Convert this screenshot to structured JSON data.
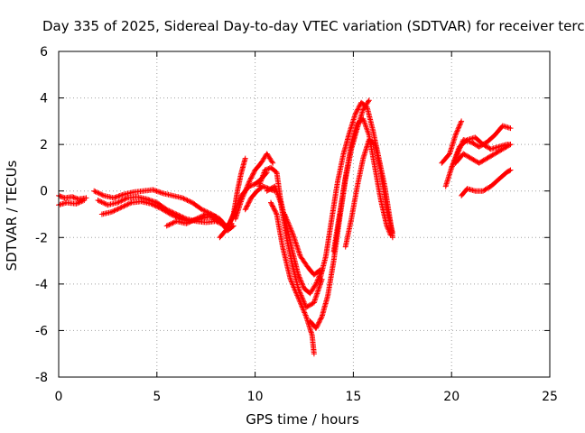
{
  "chart_data": {
    "type": "scatter",
    "title": "Day 335 of 2025, Sidereal Day-to-day VTEC variation (SDTVAR) for receiver terc",
    "xlabel": "GPS time / hours",
    "ylabel": "SDTVAR / TECUs",
    "xlim": [
      0,
      25
    ],
    "ylim": [
      -8,
      6
    ],
    "xticks": [
      0,
      5,
      10,
      15,
      20,
      25
    ],
    "yticks": [
      -8,
      -6,
      -4,
      -2,
      0,
      2,
      4,
      6
    ],
    "grid": true,
    "marker": "+",
    "series": [
      {
        "color": "#ff0000",
        "tracks": [
          [
            [
              0.0,
              -0.2
            ],
            [
              0.3,
              -0.3
            ],
            [
              0.7,
              -0.25
            ],
            [
              1.0,
              -0.35
            ],
            [
              1.4,
              -0.3
            ]
          ],
          [
            [
              0.0,
              -0.6
            ],
            [
              0.4,
              -0.5
            ],
            [
              0.9,
              -0.55
            ],
            [
              1.3,
              -0.4
            ]
          ],
          [
            [
              1.8,
              0.0
            ],
            [
              2.3,
              -0.2
            ],
            [
              2.8,
              -0.3
            ],
            [
              3.3,
              -0.15
            ],
            [
              3.8,
              -0.05
            ],
            [
              4.3,
              0.0
            ],
            [
              4.8,
              0.05
            ],
            [
              5.3,
              -0.1
            ],
            [
              5.8,
              -0.2
            ],
            [
              6.3,
              -0.3
            ],
            [
              6.8,
              -0.5
            ],
            [
              7.3,
              -0.8
            ],
            [
              7.8,
              -1.0
            ],
            [
              8.2,
              -1.2
            ],
            [
              8.5,
              -1.5
            ],
            [
              8.8,
              -1.4
            ]
          ],
          [
            [
              2.0,
              -0.4
            ],
            [
              2.5,
              -0.6
            ],
            [
              3.0,
              -0.5
            ],
            [
              3.5,
              -0.3
            ],
            [
              4.0,
              -0.25
            ],
            [
              4.5,
              -0.35
            ],
            [
              5.0,
              -0.5
            ],
            [
              5.5,
              -0.8
            ],
            [
              6.0,
              -1.0
            ],
            [
              6.5,
              -1.2
            ],
            [
              7.0,
              -1.3
            ],
            [
              7.5,
              -1.35
            ],
            [
              8.0,
              -1.3
            ],
            [
              8.5,
              -1.5
            ]
          ],
          [
            [
              2.2,
              -1.0
            ],
            [
              2.7,
              -0.9
            ],
            [
              3.2,
              -0.7
            ],
            [
              3.7,
              -0.5
            ],
            [
              4.2,
              -0.45
            ],
            [
              4.7,
              -0.55
            ],
            [
              5.2,
              -0.75
            ],
            [
              5.7,
              -1.0
            ],
            [
              6.2,
              -1.2
            ],
            [
              6.7,
              -1.3
            ],
            [
              7.2,
              -1.2
            ],
            [
              7.7,
              -1.1
            ],
            [
              8.2,
              -1.3
            ],
            [
              8.6,
              -1.7
            ],
            [
              8.9,
              -1.5
            ]
          ],
          [
            [
              5.5,
              -1.5
            ],
            [
              6.0,
              -1.3
            ],
            [
              6.5,
              -1.4
            ],
            [
              7.0,
              -1.2
            ],
            [
              7.5,
              -1.0
            ],
            [
              8.0,
              -1.1
            ]
          ],
          [
            [
              8.2,
              -2.0
            ],
            [
              8.6,
              -1.6
            ],
            [
              8.9,
              -1.0
            ],
            [
              9.1,
              0.0
            ],
            [
              9.3,
              0.8
            ],
            [
              9.5,
              1.4
            ]
          ],
          [
            [
              8.7,
              -1.4
            ],
            [
              9.0,
              -0.8
            ],
            [
              9.3,
              -0.2
            ],
            [
              9.7,
              0.2
            ],
            [
              10.0,
              0.3
            ],
            [
              10.3,
              0.5
            ],
            [
              10.6,
              0.8
            ]
          ],
          [
            [
              9.0,
              -1.2
            ],
            [
              9.3,
              -0.4
            ],
            [
              9.7,
              0.4
            ],
            [
              10.0,
              0.9
            ],
            [
              10.3,
              1.2
            ],
            [
              10.6,
              1.6
            ],
            [
              10.9,
              1.2
            ]
          ],
          [
            [
              9.5,
              -0.8
            ],
            [
              9.8,
              -0.3
            ],
            [
              10.1,
              0.0
            ],
            [
              10.4,
              0.2
            ],
            [
              10.7,
              0.1
            ],
            [
              11.0,
              0.0
            ]
          ],
          [
            [
              10.2,
              0.2
            ],
            [
              10.5,
              0.9
            ],
            [
              10.8,
              1.0
            ],
            [
              11.1,
              0.8
            ],
            [
              11.3,
              -0.4
            ],
            [
              11.6,
              -1.5
            ],
            [
              11.9,
              -2.6
            ],
            [
              12.2,
              -3.6
            ],
            [
              12.5,
              -4.2
            ],
            [
              12.8,
              -4.4
            ],
            [
              13.1,
              -4.0
            ],
            [
              13.4,
              -3.4
            ]
          ],
          [
            [
              10.6,
              0.0
            ],
            [
              11.0,
              0.2
            ],
            [
              11.3,
              -0.5
            ],
            [
              11.6,
              -2.0
            ],
            [
              11.9,
              -3.2
            ],
            [
              12.2,
              -4.2
            ],
            [
              12.6,
              -5.0
            ],
            [
              13.0,
              -4.8
            ],
            [
              13.4,
              -3.8
            ]
          ],
          [
            [
              10.8,
              -0.5
            ],
            [
              11.1,
              -1.0
            ],
            [
              11.4,
              -2.4
            ],
            [
              11.8,
              -3.8
            ],
            [
              12.2,
              -4.6
            ],
            [
              12.6,
              -5.4
            ],
            [
              12.9,
              -6.2
            ],
            [
              13.0,
              -7.0
            ]
          ],
          [
            [
              11.5,
              -1.0
            ],
            [
              11.9,
              -1.8
            ],
            [
              12.3,
              -2.8
            ],
            [
              12.7,
              -3.3
            ],
            [
              13.0,
              -3.6
            ],
            [
              13.3,
              -3.4
            ]
          ],
          [
            [
              12.8,
              -5.6
            ],
            [
              13.1,
              -5.9
            ],
            [
              13.4,
              -5.4
            ],
            [
              13.7,
              -4.5
            ],
            [
              14.0,
              -3.0
            ],
            [
              14.3,
              -1.2
            ],
            [
              14.6,
              0.5
            ],
            [
              14.9,
              1.8
            ],
            [
              15.2,
              2.7
            ],
            [
              15.5,
              3.5
            ],
            [
              15.8,
              3.9
            ]
          ],
          [
            [
              13.3,
              -3.8
            ],
            [
              13.6,
              -2.8
            ],
            [
              13.9,
              -1.2
            ],
            [
              14.2,
              0.4
            ],
            [
              14.5,
              1.6
            ],
            [
              14.8,
              2.5
            ],
            [
              15.1,
              3.3
            ],
            [
              15.4,
              3.8
            ],
            [
              15.7,
              3.6
            ],
            [
              16.0,
              2.6
            ],
            [
              16.3,
              1.4
            ],
            [
              16.6,
              0.2
            ],
            [
              16.9,
              -1.4
            ],
            [
              17.0,
              -2.0
            ]
          ],
          [
            [
              14.0,
              -2.6
            ],
            [
              14.3,
              -1.0
            ],
            [
              14.6,
              0.6
            ],
            [
              14.9,
              2.0
            ],
            [
              15.2,
              2.9
            ],
            [
              15.5,
              3.1
            ],
            [
              15.8,
              2.4
            ],
            [
              16.1,
              1.0
            ],
            [
              16.4,
              -0.4
            ],
            [
              16.7,
              -1.5
            ],
            [
              16.9,
              -1.9
            ]
          ],
          [
            [
              14.6,
              -2.4
            ],
            [
              14.9,
              -1.2
            ],
            [
              15.2,
              0.2
            ],
            [
              15.5,
              1.4
            ],
            [
              15.8,
              2.2
            ],
            [
              16.1,
              2.0
            ],
            [
              16.4,
              0.8
            ],
            [
              16.7,
              -0.8
            ],
            [
              17.0,
              -1.8
            ]
          ],
          [
            [
              19.5,
              1.2
            ],
            [
              19.9,
              1.6
            ],
            [
              20.2,
              2.4
            ],
            [
              20.5,
              3.0
            ]
          ],
          [
            [
              19.7,
              0.2
            ],
            [
              20.0,
              1.0
            ],
            [
              20.3,
              1.6
            ],
            [
              20.6,
              2.2
            ],
            [
              21.0,
              2.1
            ],
            [
              21.4,
              1.9
            ],
            [
              21.8,
              2.1
            ],
            [
              22.2,
              2.4
            ],
            [
              22.6,
              2.8
            ],
            [
              23.0,
              2.7
            ]
          ],
          [
            [
              20.0,
              1.0
            ],
            [
              20.4,
              1.9
            ],
            [
              20.8,
              2.2
            ],
            [
              21.2,
              2.3
            ],
            [
              21.6,
              2.0
            ],
            [
              22.0,
              1.8
            ],
            [
              22.4,
              1.9
            ],
            [
              22.8,
              2.0
            ],
            [
              23.0,
              2.0
            ]
          ],
          [
            [
              20.2,
              1.2
            ],
            [
              20.6,
              1.6
            ],
            [
              21.0,
              1.4
            ],
            [
              21.4,
              1.2
            ],
            [
              21.8,
              1.4
            ],
            [
              22.2,
              1.6
            ],
            [
              22.6,
              1.8
            ],
            [
              23.0,
              2.0
            ]
          ],
          [
            [
              20.5,
              -0.2
            ],
            [
              20.8,
              0.1
            ],
            [
              21.2,
              0.0
            ],
            [
              21.6,
              0.0
            ],
            [
              22.0,
              0.2
            ],
            [
              22.4,
              0.5
            ],
            [
              22.8,
              0.8
            ],
            [
              23.0,
              0.9
            ]
          ]
        ]
      }
    ]
  }
}
